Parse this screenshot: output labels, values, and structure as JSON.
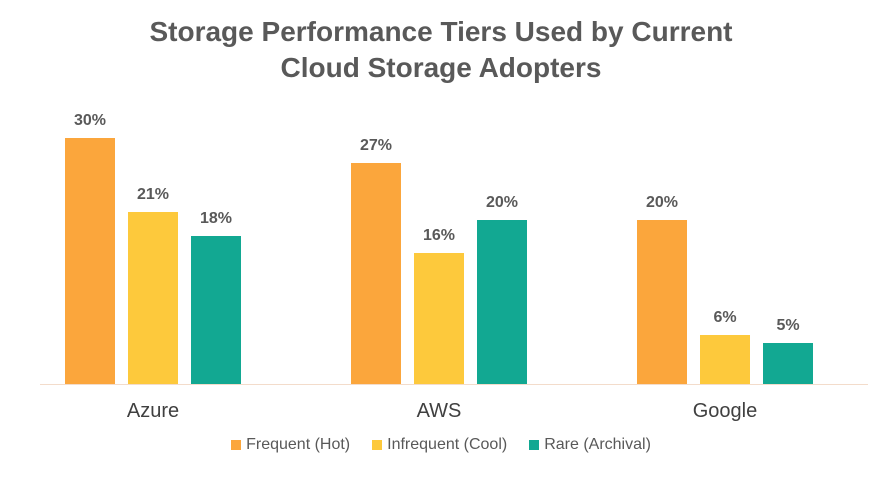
{
  "title_line1": "Storage Performance Tiers Used by Current",
  "title_line2": "Cloud Storage Adopters",
  "colors": {
    "hot": "#FBA63C",
    "cool": "#FDC93C",
    "archival": "#12A892"
  },
  "chart_data": {
    "type": "bar",
    "title": "Storage Performance Tiers Used by Current Cloud Storage Adopters",
    "categories": [
      "Azure",
      "AWS",
      "Google"
    ],
    "series": [
      {
        "name": "Frequent (Hot)",
        "values": [
          30,
          27,
          20
        ]
      },
      {
        "name": "Infrequent (Cool)",
        "values": [
          21,
          16,
          6
        ]
      },
      {
        "name": "Rare (Archival)",
        "values": [
          18,
          20,
          5
        ]
      }
    ],
    "xlabel": "",
    "ylabel": "",
    "value_format": "percent",
    "grid": false,
    "legend_position": "bottom"
  },
  "labels": {
    "azure": [
      "30%",
      "21%",
      "18%"
    ],
    "aws": [
      "27%",
      "16%",
      "20%"
    ],
    "google": [
      "20%",
      "6%",
      "5%"
    ]
  },
  "legend": [
    "Frequent (Hot)",
    "Infrequent (Cool)",
    "Rare (Archival)"
  ]
}
